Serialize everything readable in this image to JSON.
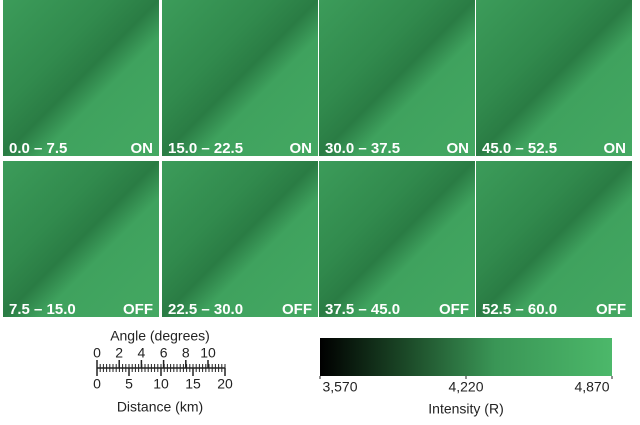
{
  "panels": [
    {
      "range": "0.0 – 7.5",
      "state": "ON"
    },
    {
      "range": "15.0 – 22.5",
      "state": "ON"
    },
    {
      "range": "30.0 – 37.5",
      "state": "ON"
    },
    {
      "range": "45.0 – 52.5",
      "state": "ON"
    },
    {
      "range": "7.5 – 15.0",
      "state": "OFF"
    },
    {
      "range": "22.5 – 30.0",
      "state": "OFF"
    },
    {
      "range": "37.5 – 45.0",
      "state": "OFF"
    },
    {
      "range": "52.5 – 60.0",
      "state": "OFF"
    }
  ],
  "scale_bar": {
    "angle_label": "Angle (degrees)",
    "angle_ticks": [
      0,
      2,
      4,
      6,
      8,
      10
    ],
    "distance_label": "Distance (km)",
    "distance_ticks": [
      0,
      5,
      10,
      15,
      20
    ]
  },
  "colorbar": {
    "label": "Intensity (R)",
    "ticks": [
      {
        "value": 3570,
        "label": "3,570"
      },
      {
        "value": 4220,
        "label": "4,220"
      },
      {
        "value": 4870,
        "label": "4,870"
      }
    ]
  }
}
